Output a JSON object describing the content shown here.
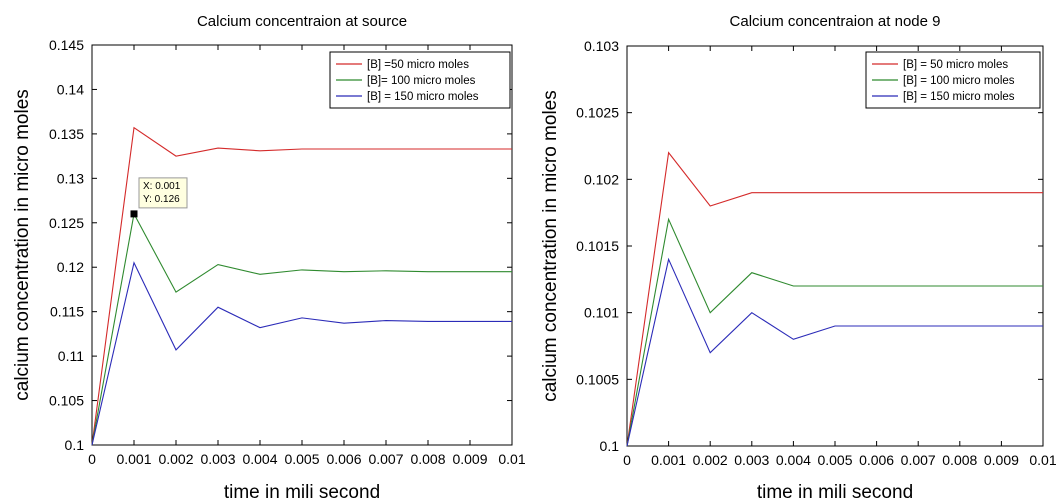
{
  "chart_data": [
    {
      "type": "line",
      "title": "Calcium concentraion at source",
      "xlabel": "time in mili second",
      "ylabel": "calcium concentration in micro moles",
      "xlim": [
        0,
        0.01
      ],
      "ylim": [
        0.1,
        0.145
      ],
      "xticks": [
        "0",
        "0.001",
        "0.002",
        "0.003",
        "0.004",
        "0.005",
        "0.006",
        "0.007",
        "0.008",
        "0.009",
        "0.01"
      ],
      "yticks": [
        "0.1",
        "0.105",
        "0.11",
        "0.115",
        "0.12",
        "0.125",
        "0.13",
        "0.135",
        "0.14",
        "0.145"
      ],
      "grid": false,
      "legend_position": "top-right",
      "x": [
        0,
        0.001,
        0.002,
        0.003,
        0.004,
        0.005,
        0.006,
        0.007,
        0.008,
        0.009,
        0.01
      ],
      "series": [
        {
          "name": "[B] =50 micro moles",
          "color": "#d42a2a",
          "values": [
            0.1,
            0.1357,
            0.1325,
            0.1334,
            0.1331,
            0.1333,
            0.1333,
            0.1333,
            0.1333,
            0.1333,
            0.1333
          ]
        },
        {
          "name": "[B]= 100 micro moles",
          "color": "#2f8a2f",
          "values": [
            0.1,
            0.126,
            0.1172,
            0.1203,
            0.1192,
            0.1197,
            0.1195,
            0.1196,
            0.1195,
            0.1195,
            0.1195
          ]
        },
        {
          "name": "[B] =  150 micro moles",
          "color": "#2b2bb8",
          "values": [
            0.1,
            0.1205,
            0.1107,
            0.1155,
            0.1132,
            0.1143,
            0.1137,
            0.114,
            0.1139,
            0.1139,
            0.1139
          ]
        }
      ],
      "datatip": {
        "x": 0.001,
        "y": 0.126,
        "label_x": "X: 0.001",
        "label_y": "Y: 0.126"
      }
    },
    {
      "type": "line",
      "title": "Calcium concentraion at node 9",
      "xlabel": "time in mili second",
      "ylabel": "calcium concentration in micro moles",
      "xlim": [
        0,
        0.01
      ],
      "ylim": [
        0.1,
        0.103
      ],
      "xticks": [
        "0",
        "0.001",
        "0.002",
        "0.003",
        "0.004",
        "0.005",
        "0.006",
        "0.007",
        "0.008",
        "0.009",
        "0.01"
      ],
      "yticks": [
        "0.1",
        "0.1005",
        "0.101",
        "0.1015",
        "0.102",
        "0.1025",
        "0.103"
      ],
      "grid": false,
      "legend_position": "top-right",
      "x": [
        0,
        0.001,
        0.002,
        0.003,
        0.004,
        0.005,
        0.006,
        0.007,
        0.008,
        0.009,
        0.01
      ],
      "series": [
        {
          "name": "[B] = 50 micro moles",
          "color": "#d42a2a",
          "values": [
            0.1,
            0.1022,
            0.1018,
            0.1019,
            0.1019,
            0.1019,
            0.1019,
            0.1019,
            0.1019,
            0.1019,
            0.1019
          ]
        },
        {
          "name": "[B] = 100 micro moles",
          "color": "#2f8a2f",
          "values": [
            0.1,
            0.1017,
            0.101,
            0.1013,
            0.1012,
            0.1012,
            0.1012,
            0.1012,
            0.1012,
            0.1012,
            0.1012
          ]
        },
        {
          "name": "[B] = 150 micro moles",
          "color": "#2b2bb8",
          "values": [
            0.1,
            0.1014,
            0.1007,
            0.101,
            0.1008,
            0.1009,
            0.1009,
            0.1009,
            0.1009,
            0.1009,
            0.1009
          ]
        }
      ]
    }
  ]
}
